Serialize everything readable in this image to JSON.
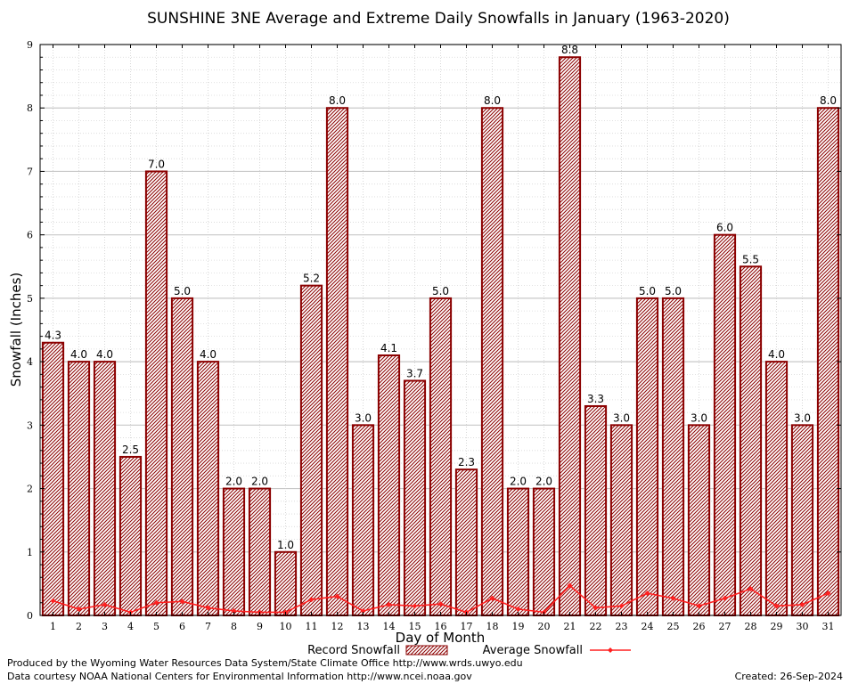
{
  "chart_data": {
    "type": "bar",
    "title": "SUNSHINE 3NE Average and Extreme Daily Snowfalls in January (1963-2020)",
    "xlabel": "Day of Month",
    "ylabel": "Snowfall (Inches)",
    "ylim": [
      0,
      9
    ],
    "yticks": [
      0,
      1,
      2,
      3,
      4,
      5,
      6,
      7,
      8,
      9
    ],
    "grid": true,
    "categories": [
      "1",
      "2",
      "3",
      "4",
      "5",
      "6",
      "7",
      "8",
      "9",
      "10",
      "11",
      "12",
      "13",
      "14",
      "15",
      "16",
      "17",
      "18",
      "19",
      "20",
      "21",
      "22",
      "23",
      "24",
      "25",
      "26",
      "27",
      "28",
      "29",
      "30",
      "31"
    ],
    "series": [
      {
        "name": "Record Snowfall",
        "kind": "bar",
        "color": "#8b0000",
        "values": [
          4.3,
          4.0,
          4.0,
          2.5,
          7.0,
          5.0,
          4.0,
          2.0,
          2.0,
          1.0,
          5.2,
          8.0,
          3.0,
          4.1,
          3.7,
          5.0,
          2.3,
          8.0,
          2.0,
          2.0,
          8.8,
          3.3,
          3.0,
          5.0,
          5.0,
          3.0,
          6.0,
          5.5,
          4.0,
          3.0,
          8.0
        ],
        "labels": [
          "4.3",
          "4.0",
          "4.0",
          "2.5",
          "7.0",
          "5.0",
          "4.0",
          "2.0",
          "2.0",
          "1.0",
          "5.2",
          "8.0",
          "3.0",
          "4.1",
          "3.7",
          "5.0",
          "2.3",
          "8.0",
          "2.0",
          "2.0",
          "8.8",
          "3.3",
          "3.0",
          "5.0",
          "5.0",
          "3.0",
          "6.0",
          "5.5",
          "4.0",
          "3.0",
          "8.0"
        ]
      },
      {
        "name": "Average Snowfall",
        "kind": "line",
        "color": "#ff2020",
        "values": [
          0.23,
          0.1,
          0.17,
          0.05,
          0.2,
          0.22,
          0.12,
          0.07,
          0.05,
          0.05,
          0.25,
          0.3,
          0.07,
          0.17,
          0.15,
          0.18,
          0.05,
          0.27,
          0.1,
          0.05,
          0.47,
          0.12,
          0.15,
          0.35,
          0.27,
          0.15,
          0.27,
          0.42,
          0.15,
          0.17,
          0.35
        ]
      }
    ]
  },
  "footer": {
    "credit_line_1": "Produced by the Wyoming Water Resources Data System/State Climate Office http://www.wrds.uwyo.edu",
    "credit_line_2": "Data courtesy NOAA National Centers for Environmental Information http://www.ncei.noaa.gov",
    "created": "Created:  26-Sep-2024"
  }
}
